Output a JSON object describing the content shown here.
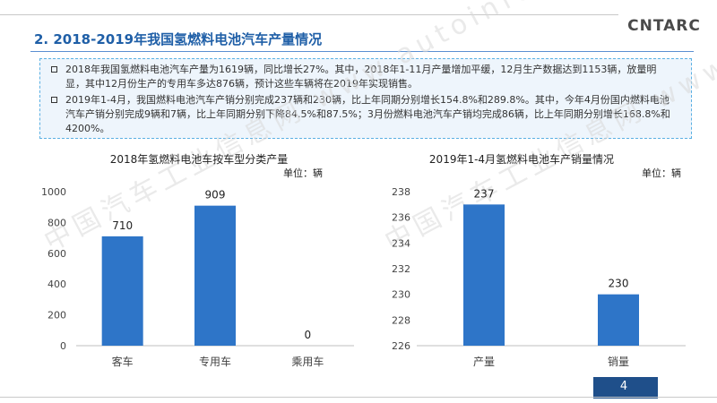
{
  "header": {
    "logo_text": "CNTARC",
    "section_title": "2. 2018-2019年我国氢燃料电池汽车产量情况"
  },
  "summary": {
    "bullets": [
      "2018年我国氢燃料电池汽车产量为1619辆，同比增长27%。其中，2018年1-11月产量增加平缓，12月生产数据达到1153辆，放量明显，其中12月份生产的专用车多达876辆，预计这些车辆将在2019年实现销售。",
      "2019年1-4月，我国燃料电池汽车产销分别完成237辆和230辆，比上年同期分别增长154.8%和289.8%。其中，今年4月份国内燃料电池汽车产销分别完成9辆和7辆，比上年同期分别下降84.5%和87.5%；3月份燃料电池汽车产销均完成86辆，比上年同期分别增长168.8%和4200%。"
    ]
  },
  "watermark": {
    "text": "中国汽车工业信息网 www.autoinfo.org.cn"
  },
  "chart_data": [
    {
      "type": "bar",
      "title": "2018年氢燃料电池车按车型分类产量",
      "unit_label": "单位：辆",
      "categories": [
        "客车",
        "专用车",
        "乘用车"
      ],
      "values": [
        710,
        909,
        0
      ],
      "ylim": [
        0,
        1000
      ],
      "yticks": [
        0,
        200,
        400,
        600,
        800,
        1000
      ],
      "color": "#2e75c8",
      "grid": false
    },
    {
      "type": "bar",
      "title": "2019年1-4月氢燃料电池车产销量情况",
      "unit_label": "单位：辆",
      "categories": [
        "产量",
        "销量"
      ],
      "values": [
        237,
        230
      ],
      "ylim": [
        226,
        238
      ],
      "yticks": [
        226,
        228,
        230,
        232,
        234,
        236,
        238
      ],
      "color": "#2e75c8",
      "grid": false
    }
  ],
  "footer": {
    "page_number": "4"
  }
}
